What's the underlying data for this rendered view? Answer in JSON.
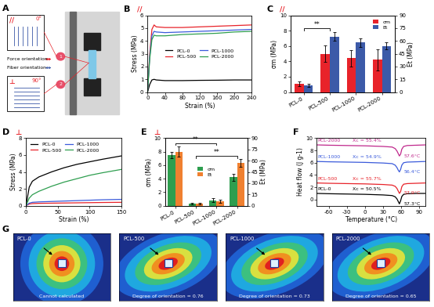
{
  "diagram": {
    "panel": "A",
    "labels": [
      "Force orientation",
      "Fiber orientation"
    ],
    "insets": [
      {
        "number": "1",
        "angle": "0°",
        "symbol": "//"
      },
      {
        "number": "2",
        "angle": "90°",
        "symbol": "⊥"
      }
    ]
  },
  "chart_data": [
    {
      "panel": "B",
      "type": "line",
      "annotations": [
        "//"
      ],
      "x_label": "Strain (%)",
      "y_label": "Stress (MPa)",
      "x": [
        0,
        5,
        10,
        15,
        20,
        40,
        80,
        120,
        160,
        200,
        240
      ],
      "series": [
        {
          "name": "PCL-0",
          "color": "#000000",
          "values": [
            0,
            0.6,
            0.95,
            1.0,
            0.95,
            0.9,
            0.9,
            0.92,
            0.93,
            0.95,
            0.95
          ]
        },
        {
          "name": "PCL-500",
          "color": "#e8232a",
          "values": [
            0,
            3.0,
            4.9,
            5.25,
            5.1,
            5.05,
            5.05,
            5.1,
            5.15,
            5.2,
            5.25
          ]
        },
        {
          "name": "PCL-1000",
          "color": "#3b5bdb",
          "values": [
            0,
            2.8,
            4.4,
            4.75,
            4.7,
            4.65,
            4.7,
            4.75,
            4.8,
            4.85,
            4.9
          ]
        },
        {
          "name": "PCL-2000",
          "color": "#2e9e4f",
          "values": [
            0,
            2.6,
            4.1,
            4.45,
            4.4,
            4.4,
            4.5,
            4.55,
            4.6,
            4.7,
            4.75
          ]
        }
      ],
      "xlim": [
        0,
        240
      ],
      "xticks": [
        0,
        40,
        80,
        120,
        160,
        200,
        240
      ],
      "ylim": [
        0,
        6
      ],
      "yticks": [
        0,
        1,
        2,
        3,
        4,
        5,
        6
      ],
      "legend": "center"
    },
    {
      "panel": "C",
      "type": "bar",
      "annotations": [
        "//"
      ],
      "categories": [
        "PCL-0",
        "PCL-500",
        "PCL-1000",
        "PCL-2000"
      ],
      "y_label": "σm (MPa)",
      "y2_label": "Et (MPa)",
      "series": [
        {
          "name": "σm",
          "color": "#e8232a",
          "values": [
            1.1,
            5.0,
            4.4,
            4.2
          ],
          "errors": [
            0.3,
            1.1,
            1.1,
            1.4
          ]
        },
        {
          "name": "Et",
          "color": "#3c5aa8",
          "axis": "y2",
          "values": [
            8.0,
            65,
            58,
            54
          ],
          "errors": [
            1.5,
            5,
            5,
            4
          ]
        }
      ],
      "ylim": [
        0,
        10
      ],
      "yticks": [
        0,
        2,
        4,
        6,
        8,
        10
      ],
      "y2lim": [
        0,
        90
      ],
      "y2ticks": [
        0,
        15,
        30,
        45,
        60,
        75,
        90
      ],
      "significance": [
        {
          "between": [
            "PCL-0",
            "PCL-500"
          ],
          "text": "**"
        }
      ],
      "legend": "upper right"
    },
    {
      "panel": "D",
      "type": "line",
      "annotations": [
        "⊥"
      ],
      "x_label": "Strain (%)",
      "y_label": "Stress (MPa)",
      "x": [
        0,
        5,
        10,
        20,
        40,
        60,
        80,
        100,
        120,
        150
      ],
      "series": [
        {
          "name": "PCL-0",
          "color": "#000000",
          "values": [
            0,
            2.2,
            2.9,
            3.4,
            4.0,
            4.5,
            4.9,
            5.2,
            5.5,
            5.9
          ]
        },
        {
          "name": "PCL-500",
          "color": "#e8232a",
          "values": [
            0,
            0.2,
            0.25,
            0.28,
            0.3,
            0.32,
            0.34,
            0.36,
            0.38,
            0.4
          ]
        },
        {
          "name": "PCL-1000",
          "color": "#3b5bdb",
          "values": [
            0,
            0.3,
            0.4,
            0.45,
            0.5,
            0.55,
            0.6,
            0.65,
            0.7,
            0.75
          ]
        },
        {
          "name": "PCL-2000",
          "color": "#2e9e4f",
          "values": [
            0,
            0.9,
            1.3,
            1.7,
            2.3,
            2.8,
            3.2,
            3.6,
            3.9,
            4.3
          ]
        }
      ],
      "xlim": [
        0,
        150
      ],
      "xticks": [
        0,
        50,
        100,
        150
      ],
      "ylim": [
        0,
        8
      ],
      "yticks": [
        0,
        2,
        4,
        6,
        8
      ],
      "legend": "upper left"
    },
    {
      "panel": "E",
      "type": "bar",
      "annotations": [
        "⊥"
      ],
      "categories": [
        "PCL-0",
        "PCL-500",
        "PCL-1000",
        "PCL-2000"
      ],
      "y_label": "σm (MPa)",
      "y2_label": "Et (MPa)",
      "series": [
        {
          "name": "σm",
          "color": "#2e9e4f",
          "values": [
            7.5,
            0.3,
            0.8,
            4.2
          ],
          "errors": [
            0.5,
            0.1,
            0.3,
            0.5
          ]
        },
        {
          "name": "Et",
          "color": "#f08030",
          "axis": "y2",
          "values": [
            72,
            3,
            6,
            57
          ],
          "errors": [
            7,
            1,
            2,
            5
          ]
        }
      ],
      "ylim": [
        0,
        10
      ],
      "yticks": [
        0,
        2,
        4,
        6,
        8,
        10
      ],
      "y2lim": [
        0,
        90
      ],
      "y2ticks": [
        0,
        15,
        30,
        45,
        60,
        75,
        90
      ],
      "significance": [
        {
          "between": [
            "PCL-0",
            "PCL-1000"
          ],
          "text": "**"
        },
        {
          "between": [
            "PCL-500",
            "PCL-2000"
          ],
          "text": "**"
        }
      ],
      "legend": "center"
    },
    {
      "panel": "F",
      "type": "line",
      "x_label": "Temperature (°C)",
      "y_label": "Heat flow (J g-1)",
      "x": [
        -80,
        -60,
        -30,
        0,
        30,
        45,
        50,
        53,
        55,
        57,
        59,
        61,
        64,
        70,
        85,
        100
      ],
      "series": [
        {
          "name": "PCL-0",
          "color": "#000000",
          "crystallinity": "Xc = 50.5%",
          "peak": "57.3°C",
          "values": [
            1.0,
            0.95,
            0.9,
            0.85,
            0.75,
            0.65,
            0.45,
            0.1,
            -0.3,
            -0.7,
            -0.2,
            0.5,
            0.85,
            0.95,
            1.0,
            1.0
          ]
        },
        {
          "name": "PCL-500",
          "color": "#e8232a",
          "crystallinity": "Xc = 55.7%",
          "peak": "57.9°C",
          "values": [
            2.7,
            2.65,
            2.6,
            2.55,
            2.45,
            2.35,
            2.15,
            1.8,
            1.4,
            1.0,
            1.3,
            2.1,
            2.5,
            2.6,
            2.65,
            2.7
          ]
        },
        {
          "name": "PCL-1000",
          "color": "#3b5bdb",
          "crystallinity": "Xc = 54.9%",
          "peak": "56.4°C",
          "values": [
            6.2,
            6.15,
            6.1,
            6.05,
            5.95,
            5.85,
            5.6,
            5.2,
            4.8,
            4.5,
            4.9,
            5.6,
            6.0,
            6.1,
            6.15,
            6.2
          ]
        },
        {
          "name": "PCL-2000",
          "color": "#c0288c",
          "crystallinity": "Xc = 55.4%",
          "peak": "57.6°C",
          "values": [
            8.9,
            8.85,
            8.8,
            8.75,
            8.65,
            8.55,
            8.3,
            7.9,
            7.5,
            7.1,
            7.4,
            8.2,
            8.65,
            8.8,
            8.85,
            8.9
          ]
        }
      ],
      "xlim": [
        -80,
        100
      ],
      "xticks": [
        -60,
        -30,
        0,
        30,
        60,
        90
      ],
      "ylim": [
        -1,
        10
      ],
      "yticks": [
        0,
        2,
        4,
        6,
        8,
        10
      ]
    }
  ],
  "images": {
    "panel": "G",
    "items": [
      {
        "label": "PCL-0",
        "caption": "Cannot calculated"
      },
      {
        "label": "PCL-500",
        "caption": "Degree of orientation = 0.76"
      },
      {
        "label": "PCL-1000",
        "caption": "Degree of orientation = 0.73"
      },
      {
        "label": "PCL-2000",
        "caption": "Degree of orientation = 0.65"
      }
    ]
  }
}
